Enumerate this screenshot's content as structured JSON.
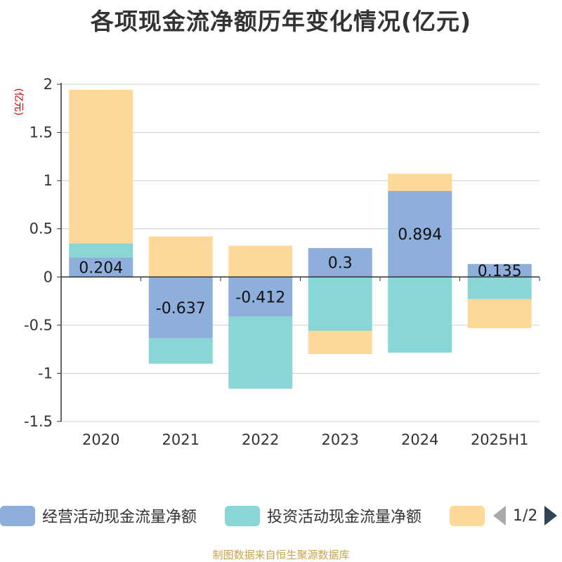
{
  "chart_data": {
    "type": "bar",
    "stacked": true,
    "title": "各项现金流净额历年变化情况(亿元)",
    "unit": "(亿元)",
    "categories": [
      "2020",
      "2021",
      "2022",
      "2023",
      "2024",
      "2025H1"
    ],
    "ylim": [
      -1.5,
      2
    ],
    "yticks": [
      2,
      1.5,
      1,
      0.5,
      0,
      -0.5,
      -1,
      -1.5
    ],
    "ytick_labels": [
      "2",
      "1.5",
      "1",
      "0.5",
      "0",
      "-0.5",
      "-1",
      "-1.5"
    ],
    "grid": true,
    "legend_position": "bottom",
    "series": [
      {
        "name": "经营活动现金流量净额",
        "color": "#8eaedb",
        "values": [
          0.204,
          -0.637,
          -0.412,
          0.3,
          0.894,
          0.135
        ],
        "labels": [
          "0.204",
          "-0.637",
          "-0.412",
          "0.3",
          "0.894",
          "0.135"
        ]
      },
      {
        "name": "投资活动现金流量净额",
        "color": "#88d6d6",
        "values": [
          0.145,
          -0.263,
          -0.748,
          -0.56,
          -0.785,
          -0.23
        ],
        "labels": []
      },
      {
        "name": "",
        "color": "#fed898",
        "values": [
          1.595,
          0.42,
          0.325,
          -0.24,
          0.178,
          -0.3
        ],
        "labels": []
      }
    ]
  },
  "legend": {
    "page_indicator": "1/2"
  },
  "footer": {
    "source": "制图数据来自恒生聚源数据库"
  }
}
